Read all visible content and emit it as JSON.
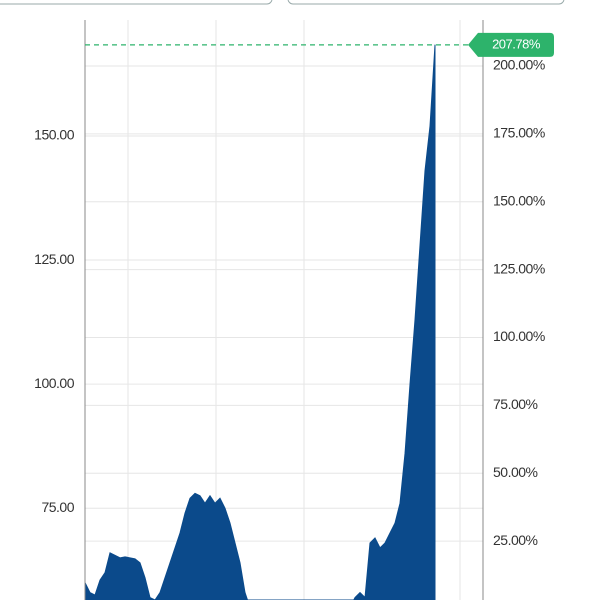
{
  "chart_data": {
    "type": "area",
    "series": [
      {
        "color": "#0b4a8b",
        "values": [
          60,
          58,
          57.5,
          60.5,
          62,
          66,
          65.5,
          65,
          65.2,
          65,
          64.8,
          64,
          61,
          57,
          56.5,
          58,
          61,
          64,
          67,
          70,
          74,
          77,
          78,
          77.5,
          76,
          77.5,
          76,
          77,
          75,
          72,
          68,
          64,
          58,
          55,
          55,
          55,
          55,
          55,
          55,
          55,
          55,
          55,
          55,
          55,
          55,
          55,
          55,
          55,
          55,
          55,
          55,
          55,
          55,
          55,
          57,
          58,
          57,
          68,
          69,
          67,
          68,
          70,
          72,
          76,
          86,
          100,
          113,
          128,
          143,
          152,
          168.4,
          null,
          null,
          null,
          null,
          null,
          null,
          null,
          null,
          null
        ]
      }
    ],
    "ylim": [
      56.5,
      177.4
    ],
    "yticks": [
      {
        "value": 75,
        "label": "75.00"
      },
      {
        "value": 100,
        "label": "100.00"
      },
      {
        "value": 125,
        "label": "125.00"
      },
      {
        "value": 150,
        "label": "150.00"
      }
    ],
    "y2lim": [
      3.3,
      224.3
    ],
    "y2ticks": [
      {
        "value": 25,
        "label": "25.00%"
      },
      {
        "value": 50,
        "label": "50.00%"
      },
      {
        "value": 75,
        "label": "75.00%"
      },
      {
        "value": 100,
        "label": "100.00%"
      },
      {
        "value": 125,
        "label": "125.00%"
      },
      {
        "value": 150,
        "label": "150.00%"
      },
      {
        "value": 175,
        "label": "175.00%"
      },
      {
        "value": 200,
        "label": "200.00%"
      }
    ],
    "last_value": {
      "value": 207.78,
      "label": "207.78%",
      "color": "#2db36b"
    },
    "grid": true
  }
}
